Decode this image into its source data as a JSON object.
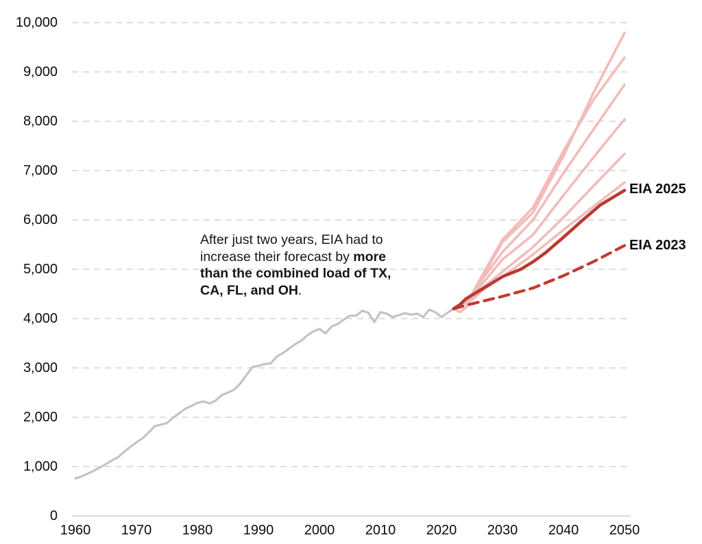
{
  "colors": {
    "history_gray": "#c3c3c3",
    "scenario_pink": "#f1bcba",
    "eia2025_red": "#b93a31",
    "eia2023_red": "#c03a2e",
    "gridline": "#d9d9d9",
    "axis": "#d4d4d4",
    "text": "#0d0d0d"
  },
  "labels": {
    "eia2025": "EIA 2025",
    "eia2023": "EIA 2023"
  },
  "annotation": {
    "lines": [
      [
        {
          "t": "After just two years, EIA had to",
          "b": false
        }
      ],
      [
        {
          "t": "increase their forecast by ",
          "b": false
        },
        {
          "t": "more",
          "b": true
        }
      ],
      [
        {
          "t": "than the combined load of TX,",
          "b": true
        }
      ],
      [
        {
          "t": "CA, FL, and OH",
          "b": true
        },
        {
          "t": ".",
          "b": false
        }
      ]
    ]
  },
  "chart_data": {
    "type": "line",
    "title": "",
    "xlabel": "",
    "ylabel": "",
    "xlim": [
      1960,
      2050
    ],
    "ylim": [
      0,
      10000
    ],
    "x_ticks": [
      1960,
      1970,
      1980,
      1990,
      2000,
      2010,
      2020,
      2030,
      2040,
      2050
    ],
    "x_tick_labels": [
      "1960",
      "1970",
      "1980",
      "1990",
      "2000",
      "2010",
      "2020",
      "2030",
      "2040",
      "2050"
    ],
    "y_ticks": [
      0,
      1000,
      2000,
      3000,
      4000,
      5000,
      6000,
      7000,
      8000,
      9000,
      10000
    ],
    "y_tick_labels": [
      "0",
      "1,000",
      "2,000",
      "3,000",
      "4,000",
      "5,000",
      "6,000",
      "7,000",
      "8,000",
      "9,000",
      "10,000"
    ],
    "grid": "horizontal-dashed",
    "legend_position": "inline-right-labels",
    "series": [
      {
        "name": "historical-load",
        "label": null,
        "style": {
          "colorKey": "history_gray",
          "width": 3.2,
          "dash": null
        },
        "points": [
          [
            1960,
            760
          ],
          [
            1961,
            800
          ],
          [
            1962,
            855
          ],
          [
            1963,
            915
          ],
          [
            1964,
            980
          ],
          [
            1965,
            1050
          ],
          [
            1966,
            1125
          ],
          [
            1967,
            1190
          ],
          [
            1968,
            1300
          ],
          [
            1969,
            1400
          ],
          [
            1970,
            1490
          ],
          [
            1971,
            1575
          ],
          [
            1972,
            1690
          ],
          [
            1973,
            1820
          ],
          [
            1974,
            1850
          ],
          [
            1975,
            1880
          ],
          [
            1976,
            1990
          ],
          [
            1977,
            2080
          ],
          [
            1978,
            2170
          ],
          [
            1979,
            2230
          ],
          [
            1980,
            2290
          ],
          [
            1981,
            2320
          ],
          [
            1982,
            2280
          ],
          [
            1983,
            2340
          ],
          [
            1984,
            2450
          ],
          [
            1985,
            2500
          ],
          [
            1986,
            2560
          ],
          [
            1987,
            2680
          ],
          [
            1988,
            2850
          ],
          [
            1989,
            3020
          ],
          [
            1990,
            3040
          ],
          [
            1991,
            3080
          ],
          [
            1992,
            3090
          ],
          [
            1993,
            3230
          ],
          [
            1994,
            3300
          ],
          [
            1995,
            3390
          ],
          [
            1996,
            3480
          ],
          [
            1997,
            3550
          ],
          [
            1998,
            3660
          ],
          [
            1999,
            3740
          ],
          [
            2000,
            3790
          ],
          [
            2001,
            3700
          ],
          [
            2002,
            3840
          ],
          [
            2003,
            3890
          ],
          [
            2004,
            3980
          ],
          [
            2005,
            4060
          ],
          [
            2006,
            4060
          ],
          [
            2007,
            4160
          ],
          [
            2008,
            4120
          ],
          [
            2009,
            3930
          ],
          [
            2010,
            4130
          ],
          [
            2011,
            4100
          ],
          [
            2012,
            4030
          ],
          [
            2013,
            4070
          ],
          [
            2014,
            4110
          ],
          [
            2015,
            4080
          ],
          [
            2016,
            4100
          ],
          [
            2017,
            4030
          ],
          [
            2018,
            4180
          ],
          [
            2019,
            4130
          ],
          [
            2020,
            4030
          ],
          [
            2021,
            4120
          ],
          [
            2022,
            4200
          ]
        ]
      },
      {
        "name": "scenario-1",
        "label": null,
        "style": {
          "colorKey": "scenario_pink",
          "width": 3.6,
          "dash": null
        },
        "points": [
          [
            2022,
            4200
          ],
          [
            2023,
            4130
          ],
          [
            2024,
            4220
          ],
          [
            2025,
            4450
          ],
          [
            2027,
            4900
          ],
          [
            2030,
            5550
          ],
          [
            2035,
            6150
          ],
          [
            2040,
            7300
          ],
          [
            2045,
            8600
          ],
          [
            2050,
            9790
          ]
        ]
      },
      {
        "name": "scenario-2",
        "label": null,
        "style": {
          "colorKey": "scenario_pink",
          "width": 3.6,
          "dash": null
        },
        "points": [
          [
            2022,
            4200
          ],
          [
            2023,
            4280
          ],
          [
            2025,
            4500
          ],
          [
            2027,
            4950
          ],
          [
            2030,
            5600
          ],
          [
            2035,
            6250
          ],
          [
            2040,
            7400
          ],
          [
            2045,
            8450
          ],
          [
            2050,
            9290
          ]
        ]
      },
      {
        "name": "scenario-3",
        "label": null,
        "style": {
          "colorKey": "scenario_pink",
          "width": 3.6,
          "dash": null
        },
        "points": [
          [
            2023,
            4250
          ],
          [
            2025,
            4480
          ],
          [
            2027,
            4850
          ],
          [
            2030,
            5350
          ],
          [
            2035,
            6000
          ],
          [
            2040,
            6950
          ],
          [
            2045,
            7850
          ],
          [
            2050,
            8740
          ]
        ]
      },
      {
        "name": "scenario-4",
        "label": null,
        "style": {
          "colorKey": "scenario_pink",
          "width": 3.6,
          "dash": null
        },
        "points": [
          [
            2023,
            4250
          ],
          [
            2025,
            4450
          ],
          [
            2027,
            4750
          ],
          [
            2030,
            5200
          ],
          [
            2035,
            5700
          ],
          [
            2040,
            6500
          ],
          [
            2045,
            7280
          ],
          [
            2050,
            8040
          ]
        ]
      },
      {
        "name": "scenario-5",
        "label": null,
        "style": {
          "colorKey": "scenario_pink",
          "width": 3.6,
          "dash": null
        },
        "points": [
          [
            2023,
            4250
          ],
          [
            2025,
            4400
          ],
          [
            2027,
            4650
          ],
          [
            2030,
            4950
          ],
          [
            2035,
            5450
          ],
          [
            2040,
            6050
          ],
          [
            2045,
            6700
          ],
          [
            2050,
            7340
          ]
        ]
      },
      {
        "name": "scenario-6",
        "label": null,
        "style": {
          "colorKey": "scenario_pink",
          "width": 3.6,
          "dash": null
        },
        "points": [
          [
            2023,
            4240
          ],
          [
            2025,
            4380
          ],
          [
            2027,
            4600
          ],
          [
            2030,
            4850
          ],
          [
            2035,
            5300
          ],
          [
            2040,
            5800
          ],
          [
            2045,
            6280
          ],
          [
            2050,
            6760
          ]
        ]
      },
      {
        "name": "eia-2023-forecast",
        "label": "EIA 2023",
        "style": {
          "colorKey": "eia2023_red",
          "width": 4.2,
          "dash": "14 9"
        },
        "points": [
          [
            2022,
            4200
          ],
          [
            2025,
            4300
          ],
          [
            2030,
            4450
          ],
          [
            2035,
            4620
          ],
          [
            2040,
            4870
          ],
          [
            2045,
            5160
          ],
          [
            2050,
            5480
          ]
        ]
      },
      {
        "name": "eia-2025-forecast",
        "label": "EIA 2025",
        "style": {
          "colorKey": "eia2025_red",
          "width": 4.6,
          "dash": null
        },
        "points": [
          [
            2022,
            4200
          ],
          [
            2023,
            4280
          ],
          [
            2024,
            4400
          ],
          [
            2026,
            4550
          ],
          [
            2028,
            4700
          ],
          [
            2030,
            4850
          ],
          [
            2033,
            5000
          ],
          [
            2035,
            5150
          ],
          [
            2037,
            5330
          ],
          [
            2040,
            5650
          ],
          [
            2043,
            5980
          ],
          [
            2046,
            6300
          ],
          [
            2050,
            6600
          ]
        ]
      }
    ]
  }
}
